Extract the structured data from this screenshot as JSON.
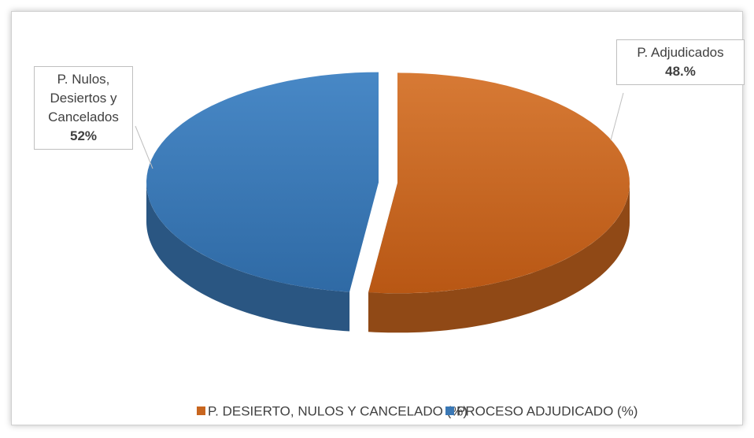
{
  "chart_data": {
    "type": "pie3d",
    "series": [
      {
        "name": "P. DESIERTO, NULOS Y CANCELADO (%)",
        "color": "#c8661f",
        "value": 52,
        "value_label": "52%",
        "slice_label": "P. Nulos, Desiertos y Cancelados"
      },
      {
        "name": "PROCESO ADJUDICADO (%)",
        "color": "#3a78b5",
        "value": 48,
        "value_label": "48.%",
        "slice_label": "P. Adjudicados"
      }
    ],
    "legend": "bottom"
  }
}
